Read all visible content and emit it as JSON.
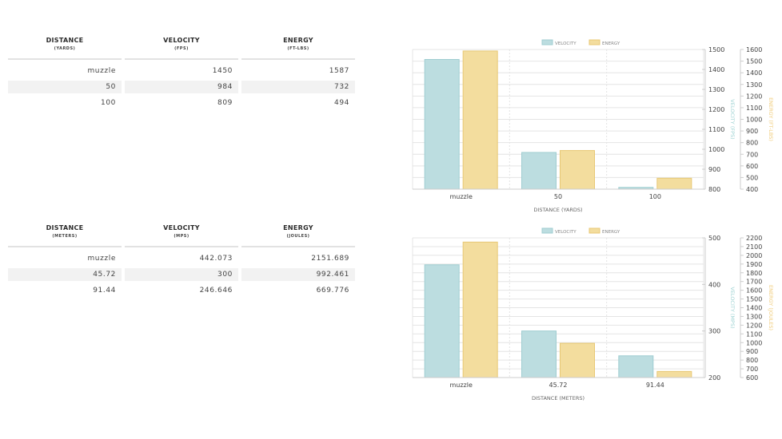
{
  "tables": [
    {
      "headers": [
        {
          "label": "DISTANCE",
          "unit": "(YARDS)"
        },
        {
          "label": "VELOCITY",
          "unit": "(FPS)"
        },
        {
          "label": "ENERGY",
          "unit": "(FT-LBS)"
        }
      ],
      "rows": [
        [
          "muzzle",
          "1450",
          "1587"
        ],
        [
          "50",
          "984",
          "732"
        ],
        [
          "100",
          "809",
          "494"
        ]
      ]
    },
    {
      "headers": [
        {
          "label": "DISTANCE",
          "unit": "(METERS)"
        },
        {
          "label": "VELOCITY",
          "unit": "(MPS)"
        },
        {
          "label": "ENERGY",
          "unit": "(JOULES)"
        }
      ],
      "rows": [
        [
          "muzzle",
          "442.073",
          "2151.689"
        ],
        [
          "45.72",
          "300",
          "992.461"
        ],
        [
          "91.44",
          "246.646",
          "669.776"
        ]
      ]
    }
  ],
  "colors": {
    "velocity_fill": "#bcdde0",
    "velocity_stroke": "#9fcdd1",
    "energy_fill": "#f3dd9e",
    "energy_stroke": "#e8c874",
    "velocity_text": "#9fd3d3",
    "energy_text": "#f0cc7a",
    "grid": "#e4e4e4",
    "axis": "#cccccc",
    "tick_text": "#444444"
  },
  "chart_data": [
    {
      "type": "bar",
      "categories": [
        "muzzle",
        "50",
        "100"
      ],
      "series": [
        {
          "name": "VELOCITY",
          "values": [
            1450,
            984,
            809
          ],
          "axis": "left"
        },
        {
          "name": "ENERGY",
          "values": [
            1587,
            732,
            494
          ],
          "axis": "right"
        }
      ],
      "xlabel": "DISTANCE (YARDS)",
      "ylabel": "VELOCITY (FPS)",
      "y2label": "ENERGY (FT-LBS)",
      "ylim": [
        800,
        1500
      ],
      "y2lim": [
        400,
        1600
      ],
      "yticks": [
        800,
        900,
        1000,
        1100,
        1200,
        1300,
        1400,
        1500
      ],
      "y2ticks": [
        400,
        500,
        600,
        700,
        800,
        900,
        1000,
        1100,
        1200,
        1300,
        1400,
        1500,
        1600
      ],
      "legend": "top-center"
    },
    {
      "type": "bar",
      "categories": [
        "muzzle",
        "45.72",
        "91.44"
      ],
      "series": [
        {
          "name": "VELOCITY",
          "values": [
            442.073,
            300,
            246.646
          ],
          "axis": "left"
        },
        {
          "name": "ENERGY",
          "values": [
            2151.689,
            992.461,
            669.776
          ],
          "axis": "right"
        }
      ],
      "xlabel": "DISTANCE (METERS)",
      "ylabel": "VELOCITY (MPS)",
      "y2label": "ENERGY (JOULES)",
      "ylim": [
        200,
        500
      ],
      "y2lim": [
        600,
        2200
      ],
      "yticks": [
        200,
        300,
        400,
        500
      ],
      "y2ticks": [
        600,
        700,
        800,
        900,
        1000,
        1100,
        1200,
        1300,
        1400,
        1500,
        1600,
        1700,
        1800,
        1900,
        2000,
        2100,
        2200
      ],
      "legend": "top-center"
    }
  ]
}
